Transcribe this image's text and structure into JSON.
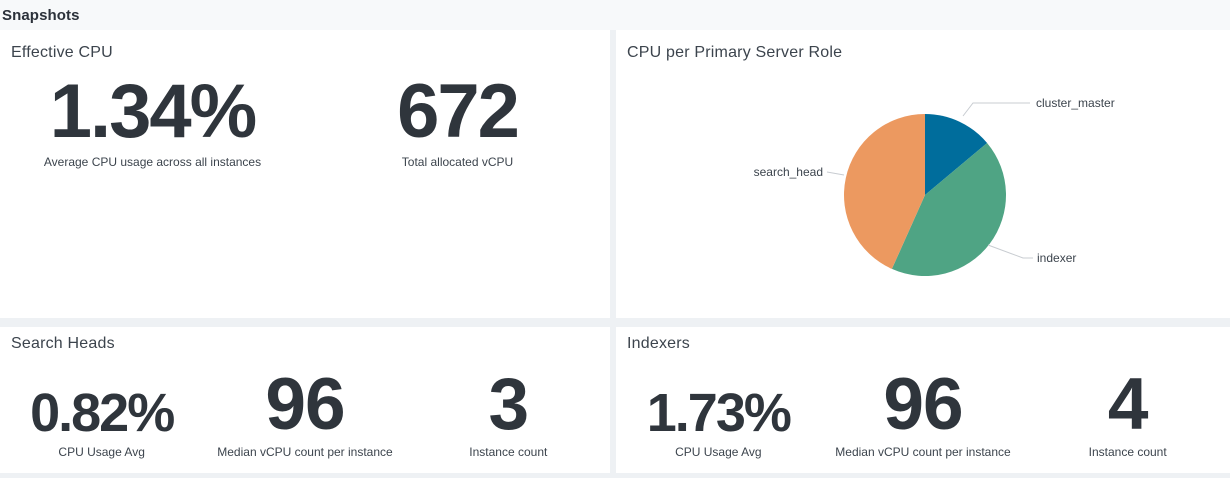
{
  "page": {
    "section_title": "Snapshots"
  },
  "panels": {
    "effective_cpu": {
      "title": "Effective CPU",
      "values": [
        {
          "value": "1.34%",
          "caption": "Average CPU usage across all instances"
        },
        {
          "value": "672",
          "caption": "Total allocated vCPU"
        }
      ]
    },
    "cpu_per_role": {
      "title": "CPU per Primary Server Role"
    },
    "search_heads": {
      "title": "Search Heads",
      "values": [
        {
          "value": "0.82%",
          "caption": "CPU Usage Avg"
        },
        {
          "value": "96",
          "caption": "Median vCPU count per instance"
        },
        {
          "value": "3",
          "caption": "Instance count"
        }
      ]
    },
    "indexers": {
      "title": "Indexers",
      "values": [
        {
          "value": "1.73%",
          "caption": "CPU Usage Avg"
        },
        {
          "value": "96",
          "caption": "Median vCPU count per instance"
        },
        {
          "value": "4",
          "caption": "Instance count"
        }
      ]
    }
  },
  "chart_data": {
    "type": "pie",
    "title": "CPU per Primary Server Role",
    "start_angle_deg": 0,
    "direction": "clockwise",
    "legend": "callout-labels",
    "slices": [
      {
        "label": "cluster_master",
        "value_pct": 13.9,
        "color": "#006d9c"
      },
      {
        "label": "indexer",
        "value_pct": 42.8,
        "color": "#4fa484"
      },
      {
        "label": "search_head",
        "value_pct": 43.3,
        "color": "#ec9960"
      }
    ]
  }
}
